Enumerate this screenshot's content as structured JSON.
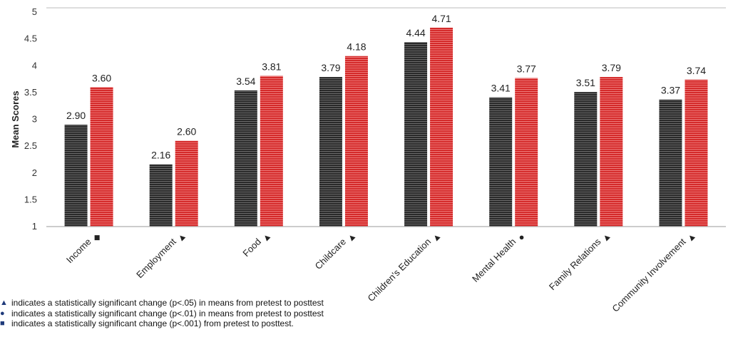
{
  "colors": {
    "pretest": "#2a2a2a",
    "posttest": "#d42a2a",
    "symbol": "#1f3a7a",
    "axis": "#999999"
  },
  "chart_data": {
    "type": "bar",
    "ylabel": "Mean Scores",
    "ylim": [
      1,
      5
    ],
    "yticks": [
      "1",
      "1.5",
      "2",
      "2.5",
      "3",
      "3.5",
      "4",
      "4.5",
      "5"
    ],
    "grid": false,
    "categories": [
      "Income",
      "Employment",
      "Food",
      "Childcare",
      "Children's Education",
      "Mental Health",
      "Family Relations",
      "Community Involvement"
    ],
    "category_markers": [
      "square",
      "triangle",
      "triangle",
      "triangle",
      "triangle",
      "circle",
      "triangle",
      "triangle"
    ],
    "series": [
      {
        "values": [
          2.9,
          2.16,
          3.54,
          3.79,
          4.44,
          3.41,
          3.51,
          3.37
        ],
        "labels": [
          "2.90",
          "2.16",
          "3.54",
          "3.79",
          "4.44",
          "3.41",
          "3.51",
          "3.37"
        ]
      },
      {
        "values": [
          3.6,
          2.6,
          3.81,
          4.18,
          4.71,
          3.77,
          3.79,
          3.74
        ],
        "labels": [
          "3.60",
          "2.60",
          "3.81",
          "4.18",
          "4.71",
          "3.77",
          "3.79",
          "3.74"
        ]
      }
    ]
  },
  "legend": [
    {
      "symbol": "triangle",
      "text": "indicates a statistically significant change (p<.05) in means from pretest to posttest"
    },
    {
      "symbol": "circle",
      "text": "indicates a statistically significant change (p<.01) in means from pretest to posttest"
    },
    {
      "symbol": "square",
      "text": "indicates a statistically significant change (p<.001) from pretest to posttest."
    }
  ]
}
